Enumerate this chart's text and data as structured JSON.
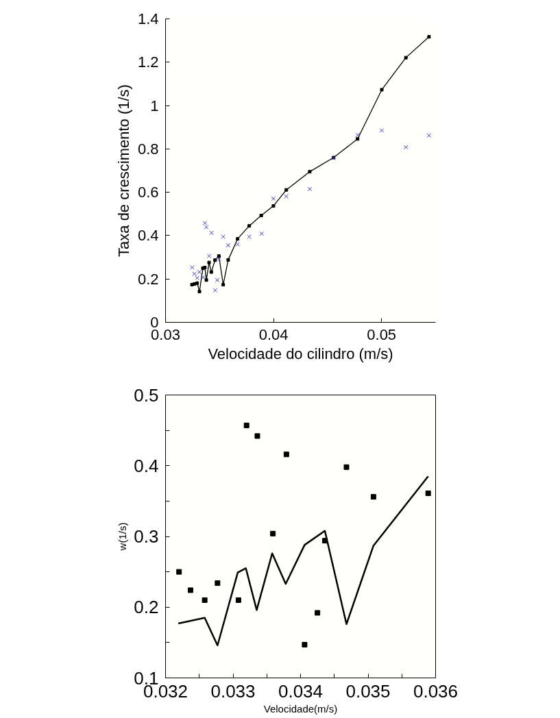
{
  "chart_data": [
    {
      "type": "line",
      "xlabel": "Velocidade do cilindro (m/s)",
      "ylabel": "Taxa de crescimento (1/s)",
      "xlim": [
        0.03,
        0.055
      ],
      "ylim": [
        0,
        1.4
      ],
      "xticks": [
        0.03,
        0.04,
        0.05
      ],
      "yticks": [
        0,
        0.2,
        0.4,
        0.6,
        0.8,
        1,
        1.2,
        1.4
      ],
      "grid": false,
      "series": [
        {
          "color": "#000000",
          "marker": "square",
          "line_style": "solid",
          "x": [
            0.03245,
            0.03267,
            0.03293,
            0.03314,
            0.03346,
            0.03364,
            0.03378,
            0.03403,
            0.03424,
            0.03458,
            0.03494,
            0.03534,
            0.0358,
            0.03667,
            0.03775,
            0.03886,
            0.03999,
            0.04118,
            0.04335,
            0.04556,
            0.04778,
            0.05002,
            0.05225,
            0.05439
          ],
          "values": [
            0.174,
            0.177,
            0.181,
            0.142,
            0.25,
            0.253,
            0.195,
            0.276,
            0.232,
            0.287,
            0.306,
            0.174,
            0.288,
            0.385,
            0.445,
            0.493,
            0.537,
            0.611,
            0.695,
            0.76,
            0.846,
            1.073,
            1.221,
            1.317
          ]
        },
        {
          "type": "scatter",
          "color": "#3c3cc8",
          "marker": "cross",
          "x": [
            0.03246,
            0.03267,
            0.03293,
            0.03313,
            0.03351,
            0.03364,
            0.03378,
            0.03404,
            0.03426,
            0.0346,
            0.03479,
            0.03494,
            0.03534,
            0.0358,
            0.03667,
            0.03775,
            0.0389,
            0.03999,
            0.04118,
            0.04335,
            0.04556,
            0.04778,
            0.05002,
            0.05225,
            0.05439
          ],
          "values": [
            0.253,
            0.224,
            0.205,
            0.232,
            0.208,
            0.458,
            0.439,
            0.306,
            0.413,
            0.148,
            0.195,
            0.292,
            0.395,
            0.355,
            0.36,
            0.395,
            0.409,
            0.571,
            0.581,
            0.615,
            0.758,
            0.864,
            0.885,
            0.808,
            0.862
          ]
        }
      ]
    },
    {
      "type": "line",
      "xlabel": "Velocidade(m/s)",
      "ylabel": "w(1/s)",
      "xlim": [
        0.032,
        0.036
      ],
      "ylim": [
        0.1,
        0.5
      ],
      "xticks": [
        0.032,
        {
          "value": 0.0325,
          "label": null
        },
        0.033,
        {
          "value": 0.0335,
          "label": null
        },
        0.034,
        {
          "value": 0.0345,
          "label": null
        },
        0.035,
        {
          "value": 0.0355,
          "label": null
        },
        0.036
      ],
      "yticks": [
        0.1,
        {
          "value": 0.15,
          "label": null
        },
        0.2,
        {
          "value": 0.25,
          "label": null
        },
        0.3,
        {
          "value": 0.35,
          "label": null
        },
        0.4,
        {
          "value": 0.45,
          "label": null
        },
        0.5
      ],
      "grid": false,
      "series": [
        {
          "color": "#000000",
          "marker": "none",
          "line_style": "solid",
          "x": [
            0.03219,
            0.03258,
            0.03277,
            0.03307,
            0.03319,
            0.03335,
            0.03358,
            0.03378,
            0.03406,
            0.03436,
            0.03468,
            0.03508,
            0.03589
          ],
          "values": [
            0.177,
            0.185,
            0.146,
            0.249,
            0.255,
            0.196,
            0.276,
            0.233,
            0.288,
            0.308,
            0.176,
            0.287,
            0.385
          ]
        },
        {
          "type": "scatter",
          "color": "#000000",
          "marker": "square",
          "x": [
            0.0322,
            0.03237,
            0.03258,
            0.03277,
            0.03308,
            0.0332,
            0.03336,
            0.03359,
            0.03379,
            0.03406,
            0.03425,
            0.03436,
            0.03468,
            0.03508,
            0.03589
          ],
          "values": [
            0.25,
            0.224,
            0.21,
            0.234,
            0.21,
            0.457,
            0.442,
            0.304,
            0.416,
            0.147,
            0.192,
            0.294,
            0.398,
            0.356,
            0.361
          ]
        }
      ]
    }
  ]
}
